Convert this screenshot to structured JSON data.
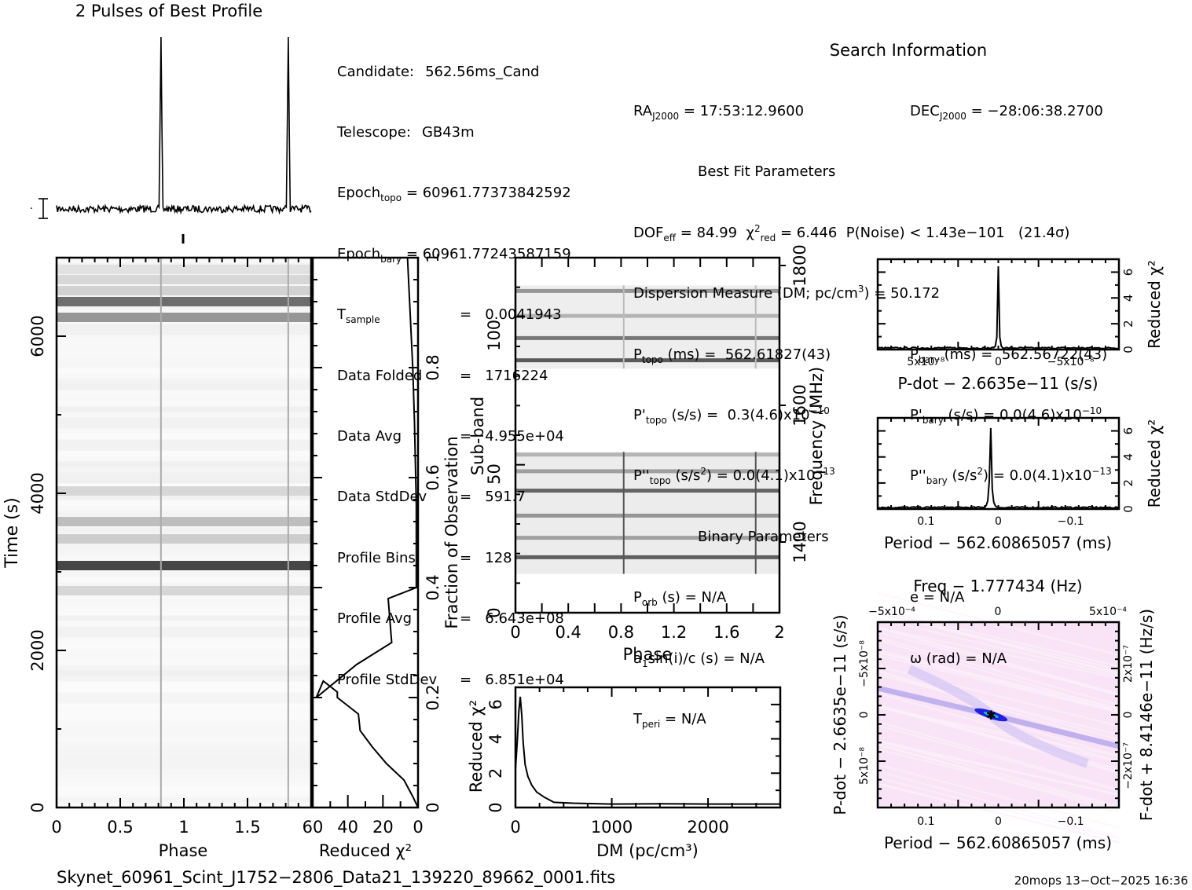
{
  "header": {
    "profile_title": "2 Pulses of Best Profile",
    "search_info_title": "Search Information",
    "best_fit_title": "Best Fit Parameters",
    "binary_title": "Binary Parameters"
  },
  "candidate_info": [
    {
      "label": "Candidate:",
      "value": "562.56ms_Cand"
    },
    {
      "label": "Telescope:",
      "value": "GB43m"
    },
    {
      "label": "Epoch",
      "sub": "topo",
      "eq": "=",
      "value": "60961.77373842592"
    },
    {
      "label": "Epoch",
      "sub": "bary",
      "eq": "=",
      "value": "60961.77243587159"
    },
    {
      "label": "T",
      "sub": "sample",
      "eq": "=",
      "value": "0.0041943"
    },
    {
      "label": "Data Folded",
      "eq": "=",
      "value": "1716224"
    },
    {
      "label": "Data Avg",
      "eq": "=",
      "value": "4.955e+04"
    },
    {
      "label": "Data StdDev",
      "eq": "=",
      "value": "591.7"
    },
    {
      "label": "Profile Bins",
      "eq": "=",
      "value": "128"
    },
    {
      "label": "Profile Avg",
      "eq": "=",
      "value": "6.643e+08"
    },
    {
      "label": "Profile StdDev",
      "eq": "=",
      "value": "6.851e+04"
    }
  ],
  "search_info": {
    "ra": "17:53:12.9600",
    "dec": "−28:06:38.2700",
    "dof_eff": "84.99",
    "chi2_red": "6.446",
    "p_noise": "1.43e−101",
    "sigma": "(21.4σ)",
    "dm": "50.172",
    "p_topo_ms": "562.61827(43)",
    "p_bary_ms": "562.56722(43)",
    "pd_topo": "0.3(4.6)x10",
    "pd_topo_exp": "−10",
    "pd_bary": "0.0(4.6)x10",
    "pd_bary_exp": "−10",
    "pdd_topo": "0.0(4.1)x10",
    "pdd_topo_exp": "−13",
    "pdd_bary": "0.0(4.1)x10",
    "pdd_bary_exp": "−13",
    "p_orb": "N/A",
    "e": "N/A",
    "a1sini": "N/A",
    "omega": "N/A",
    "t_peri": "N/A"
  },
  "footer": {
    "filename": "Skynet_60961_Scint_J1752−2806_Data21_139220_89662_0001.fits",
    "stamp": "20mops 13−Oct−2025 16:36"
  },
  "chart_data": [
    {
      "id": "profile",
      "type": "line",
      "title": "2 Pulses of Best Profile",
      "xlim": [
        0,
        2
      ],
      "peaks_phase": [
        0.82,
        1.82
      ],
      "note": "two narrow pulses on a noisy flat baseline, error bar marker at left"
    },
    {
      "id": "time-phase",
      "type": "heatmap",
      "xlabel": "Phase",
      "ylabel": "Time (s)",
      "xlim": [
        0,
        2
      ],
      "ylim": [
        0,
        7000
      ],
      "xticks": [
        "0",
        "0.5",
        "1",
        "1.5"
      ],
      "yticks": [
        "0",
        "2000",
        "4000",
        "6000"
      ],
      "bright_rows_time_s": [
        6440,
        6240,
        3640,
        3420,
        3080,
        2760,
        4030
      ],
      "pulse_phase": [
        0.82,
        1.82
      ]
    },
    {
      "id": "time-chi2",
      "type": "line",
      "xlabel": "Reduced χ²",
      "ylabel": "Fraction of Observation",
      "xlim": [
        60,
        0
      ],
      "ylim": [
        0,
        1
      ],
      "xticks": [
        "60",
        "40",
        "20",
        "0"
      ],
      "yticks": [
        "0",
        "0.2",
        "0.4",
        "0.6",
        "0.8",
        "1"
      ],
      "x": [
        0,
        3,
        8,
        18,
        26,
        33,
        34,
        42,
        46,
        46,
        54,
        58,
        35,
        15,
        17,
        1,
        1,
        2,
        3,
        6
      ],
      "y": [
        0,
        0.02,
        0.05,
        0.08,
        0.11,
        0.14,
        0.17,
        0.19,
        0.2,
        0.21,
        0.23,
        0.2,
        0.26,
        0.3,
        0.38,
        0.4,
        0.55,
        0.7,
        0.8,
        1.0
      ]
    },
    {
      "id": "subband-phase",
      "type": "heatmap",
      "xlabel": "Phase",
      "ylabel": "Sub-band",
      "y2label": "Frequency (MHz)",
      "xlim": [
        0,
        2
      ],
      "ylim": [
        0,
        128
      ],
      "xticks": [
        "0",
        "0.4",
        "0.8",
        "1.2",
        "1.6",
        "2"
      ],
      "yticks": [
        "0",
        "50",
        "100"
      ],
      "y2ticks": [
        "1400",
        "1600",
        "1800"
      ],
      "dark_subbands": [
        20,
        27,
        35,
        44,
        51,
        57,
        91,
        99,
        107,
        116
      ],
      "pulse_phase": [
        0.82,
        1.82
      ]
    },
    {
      "id": "dm-chi2",
      "type": "line",
      "xlabel": "DM (pc/cm³)",
      "ylabel": "Reduced χ²",
      "xlim": [
        0,
        2750
      ],
      "ylim": [
        0,
        7
      ],
      "xticks": [
        "0",
        "1000",
        "2000"
      ],
      "yticks": [
        "0",
        "2",
        "4",
        "6"
      ],
      "x": [
        0,
        20,
        35,
        50,
        65,
        80,
        100,
        130,
        170,
        220,
        300,
        400,
        600,
        1000,
        1500,
        2000,
        2750
      ],
      "y": [
        2.2,
        4.0,
        5.6,
        6.45,
        5.4,
        3.8,
        2.5,
        1.8,
        1.3,
        0.9,
        0.6,
        0.3,
        0.25,
        0.2,
        0.22,
        0.2,
        0.2
      ]
    },
    {
      "id": "pdot-chi2",
      "type": "line",
      "xlabel": "P-dot − 2.6635e−11 (s/s)",
      "ylabel": "Reduced χ²",
      "xlim": [
        1e-07,
        -1e-07
      ],
      "ylim": [
        0,
        7
      ],
      "xticks": [
        "5x10⁻⁸",
        "0",
        "−5x10⁻⁸"
      ],
      "yticks": [
        "0",
        "2",
        "4",
        "6"
      ],
      "peak_x": 0,
      "peak_y": 6.45
    },
    {
      "id": "period-chi2",
      "type": "line",
      "xlabel": "Period − 562.60865057 (ms)",
      "ylabel": "Reduced χ²",
      "xlim": [
        0.17,
        -0.17
      ],
      "ylim": [
        0,
        7
      ],
      "xticks": [
        "0.1",
        "0",
        "−0.1"
      ],
      "yticks": [
        "0",
        "2",
        "4",
        "6"
      ],
      "peak_x": 0.01,
      "peak_y": 6.45
    },
    {
      "id": "p-pdot-plane",
      "type": "heatmap",
      "title": "Freq − 1.777434 (Hz)",
      "xlabel": "Period − 562.60865057 (ms)",
      "ylabel": "P-dot − 2.6635e−11 (s/s)",
      "y2label": "F-dot + 8.4146e−11 (Hz/s)",
      "xlim": [
        0.17,
        -0.17
      ],
      "ylim": [
        1e-07,
        -1e-07
      ],
      "xticks": [
        "0.1",
        "0",
        "−0.1"
      ],
      "x2ticks": [
        "−5x10⁻⁴",
        "0",
        "5x10⁻⁴"
      ],
      "yticks": [
        "−5x10⁻⁸",
        "0",
        "5x10⁻⁸"
      ],
      "y2ticks": [
        "2x10⁻⁷",
        "0",
        "−2x10⁻⁷"
      ],
      "best_fit": [
        0.01,
        0
      ]
    }
  ]
}
